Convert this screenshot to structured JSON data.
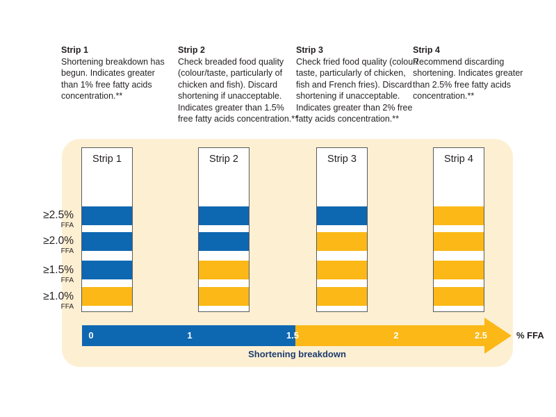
{
  "colors": {
    "blue": "#0e67b1",
    "yellow": "#fbb817",
    "panel_bg": "#fdefd2",
    "text_dark": "#231f20",
    "navy": "#1d3c6e",
    "strip_border": "#58595b"
  },
  "descriptions": [
    {
      "title": "Strip 1",
      "body": "Shortening breakdown has\nbegun. Indicates greater\nthan 1% free fatty acids\nconcentration.**"
    },
    {
      "title": "Strip 2",
      "body": "Check breaded food quality\n(colour/taste, particularly of\nchicken and fish). Discard\nshortening if unacceptable.\nIndicates greater than 1.5%\nfree fatty acids concentration.**"
    },
    {
      "title": "Strip 3",
      "body": "Check fried food quality (colour/\ntaste, particularly of chicken,\nfish and French fries).  Discard\nshortening if unacceptable.\nIndicates greater than 2% free\nfatty acids concentration.**"
    },
    {
      "title": "Strip 4",
      "body": "Recommend discarding\nshortening. Indicates greater\nthan 2.5% free fatty acids\nconcentration.**"
    }
  ],
  "ffa_labels": [
    {
      "value": "≥2.5%",
      "unit": "FFA"
    },
    {
      "value": "≥2.0%",
      "unit": "FFA"
    },
    {
      "value": "≥1.5%",
      "unit": "FFA"
    },
    {
      "value": "≥1.0%",
      "unit": "FFA"
    }
  ],
  "strips": [
    {
      "label": "Strip 1",
      "bands": [
        "blue",
        "blue",
        "blue",
        "yellow"
      ]
    },
    {
      "label": "Strip 2",
      "bands": [
        "blue",
        "blue",
        "yellow",
        "yellow"
      ]
    },
    {
      "label": "Strip 3",
      "bands": [
        "blue",
        "yellow",
        "yellow",
        "yellow"
      ]
    },
    {
      "label": "Strip 4",
      "bands": [
        "yellow",
        "yellow",
        "yellow",
        "yellow"
      ]
    }
  ],
  "axis": {
    "ticks": [
      "0",
      "1",
      "1.5",
      "2",
      "2.5"
    ],
    "caption": "Shortening breakdown",
    "unit": "% FFA",
    "blue_range": [
      0,
      1.5
    ],
    "yellow_range": [
      1.5,
      2.5
    ]
  }
}
